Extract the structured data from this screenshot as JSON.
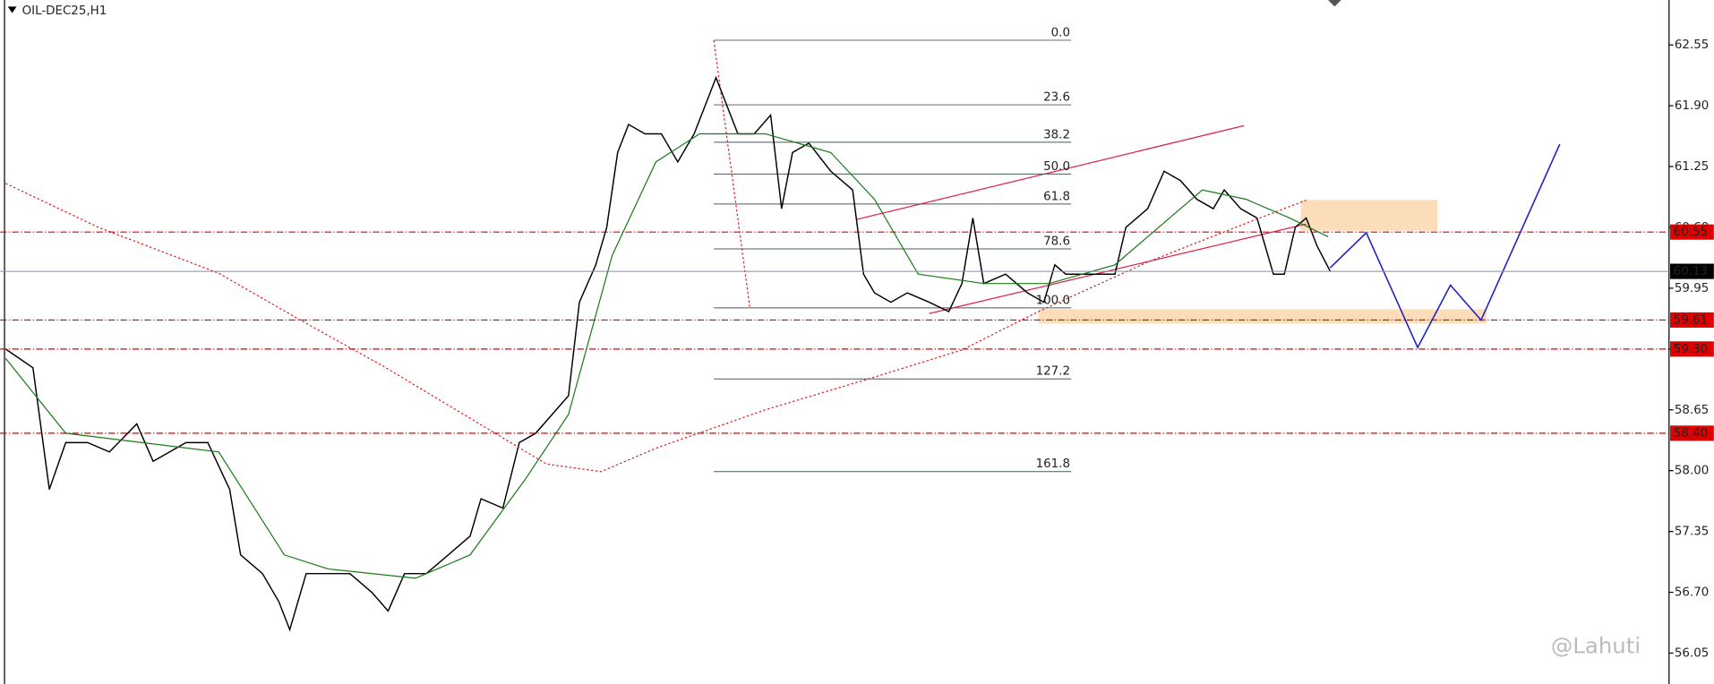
{
  "chart_data": {
    "type": "line",
    "title": "OIL-DEC25,H1",
    "watermark": "@Lahuti",
    "ylim": [
      55.72,
      63.03
    ],
    "xlim": [
      0,
      1527
    ],
    "yticks": [
      62.55,
      {
        "value": 61.9,
        "label": "61.90"
      },
      61.25,
      {
        "value": 60.6,
        "label": "60.60"
      },
      59.95,
      {
        "value": 59.3,
        "label": "59.30"
      },
      58.65,
      {
        "value": 58.0,
        "label": "58.00"
      },
      57.35,
      {
        "value": 56.7,
        "label": "56.70"
      },
      56.05
    ],
    "series": [
      {
        "color": "#000000",
        "x": [
          5,
          30,
          45,
          60,
          80,
          100,
          125,
          140,
          170,
          190,
          210,
          220,
          240,
          255,
          265,
          280,
          300,
          320,
          340,
          355,
          370,
          390,
          410,
          430,
          440,
          460,
          475,
          490,
          505,
          520,
          530,
          545,
          555,
          565,
          575,
          590,
          605,
          620,
          635,
          645,
          655,
          665,
          675,
          690,
          705,
          715,
          725,
          740,
          760,
          780,
          790,
          800,
          815,
          830,
          850,
          868,
          880,
          890,
          900,
          920,
          940,
          955,
          965,
          975,
          990,
          1005,
          1020,
          1030,
          1040,
          1050,
          1065,
          1080,
          1095,
          1110,
          1120,
          1135,
          1150,
          1165,
          1175,
          1185,
          1195,
          1205,
          1217
        ],
        "values": [
          59.3,
          59.1,
          57.8,
          58.3,
          58.3,
          58.2,
          58.5,
          58.1,
          58.3,
          58.3,
          57.8,
          57.1,
          56.9,
          56.6,
          56.3,
          56.9,
          56.9,
          56.9,
          56.7,
          56.5,
          56.9,
          56.9,
          57.1,
          57.3,
          57.7,
          57.6,
          58.3,
          58.4,
          58.6,
          58.8,
          59.8,
          60.2,
          60.6,
          61.4,
          61.7,
          61.6,
          61.6,
          61.3,
          61.6,
          61.9,
          62.2,
          61.9,
          61.6,
          61.6,
          61.8,
          60.8,
          61.4,
          61.5,
          61.2,
          61.0,
          60.1,
          59.9,
          59.8,
          59.9,
          59.8,
          59.7,
          60.0,
          60.7,
          60.0,
          60.1,
          59.9,
          59.8,
          60.2,
          60.1,
          60.1,
          60.1,
          60.1,
          60.6,
          60.7,
          60.8,
          61.2,
          61.1,
          60.9,
          60.8,
          61.0,
          60.8,
          60.7,
          60.1,
          60.1,
          60.6,
          60.7,
          60.4,
          60.13
        ]
      },
      {
        "color": "#1a7a1a",
        "x": [
          5,
          60,
          130,
          200,
          260,
          300,
          380,
          430,
          480,
          520,
          560,
          600,
          640,
          700,
          760,
          800,
          840,
          900,
          960,
          1020,
          1060,
          1100,
          1140,
          1180,
          1215
        ],
        "values": [
          59.2,
          58.4,
          58.3,
          58.2,
          57.1,
          56.95,
          56.85,
          57.1,
          57.9,
          58.6,
          60.3,
          61.3,
          61.6,
          61.6,
          61.4,
          60.9,
          60.1,
          60.0,
          60.0,
          60.2,
          60.6,
          61.0,
          60.9,
          60.7,
          60.5
        ]
      },
      {
        "color": "#e02020",
        "dashed": true,
        "x": [
          5,
          90,
          200,
          270,
          350,
          450,
          500,
          550,
          600,
          700,
          800,
          880,
          950,
          1050,
          1150,
          1195
        ],
        "values": [
          61.07,
          60.6,
          60.11,
          59.64,
          59.12,
          58.42,
          58.07,
          57.99,
          58.24,
          58.65,
          59.0,
          59.29,
          59.7,
          60.23,
          60.69,
          60.89
        ]
      }
    ],
    "levels": [
      60.55,
      59.61,
      {
        "value": 59.3,
        "label": "59.30"
      },
      {
        "value": 58.4,
        "label": "58.40"
      }
    ],
    "level_color": "#e00000",
    "current_price": 60.13,
    "fib": {
      "levels": [
        "0.0",
        "23.6",
        "38.2",
        "50.0",
        "61.8",
        "78.6",
        "100.0",
        "127.2",
        "161.8"
      ],
      "prices": [
        62.6,
        61.91,
        61.51,
        61.17,
        60.85,
        60.37,
        59.74,
        58.98,
        57.99
      ]
    }
  }
}
